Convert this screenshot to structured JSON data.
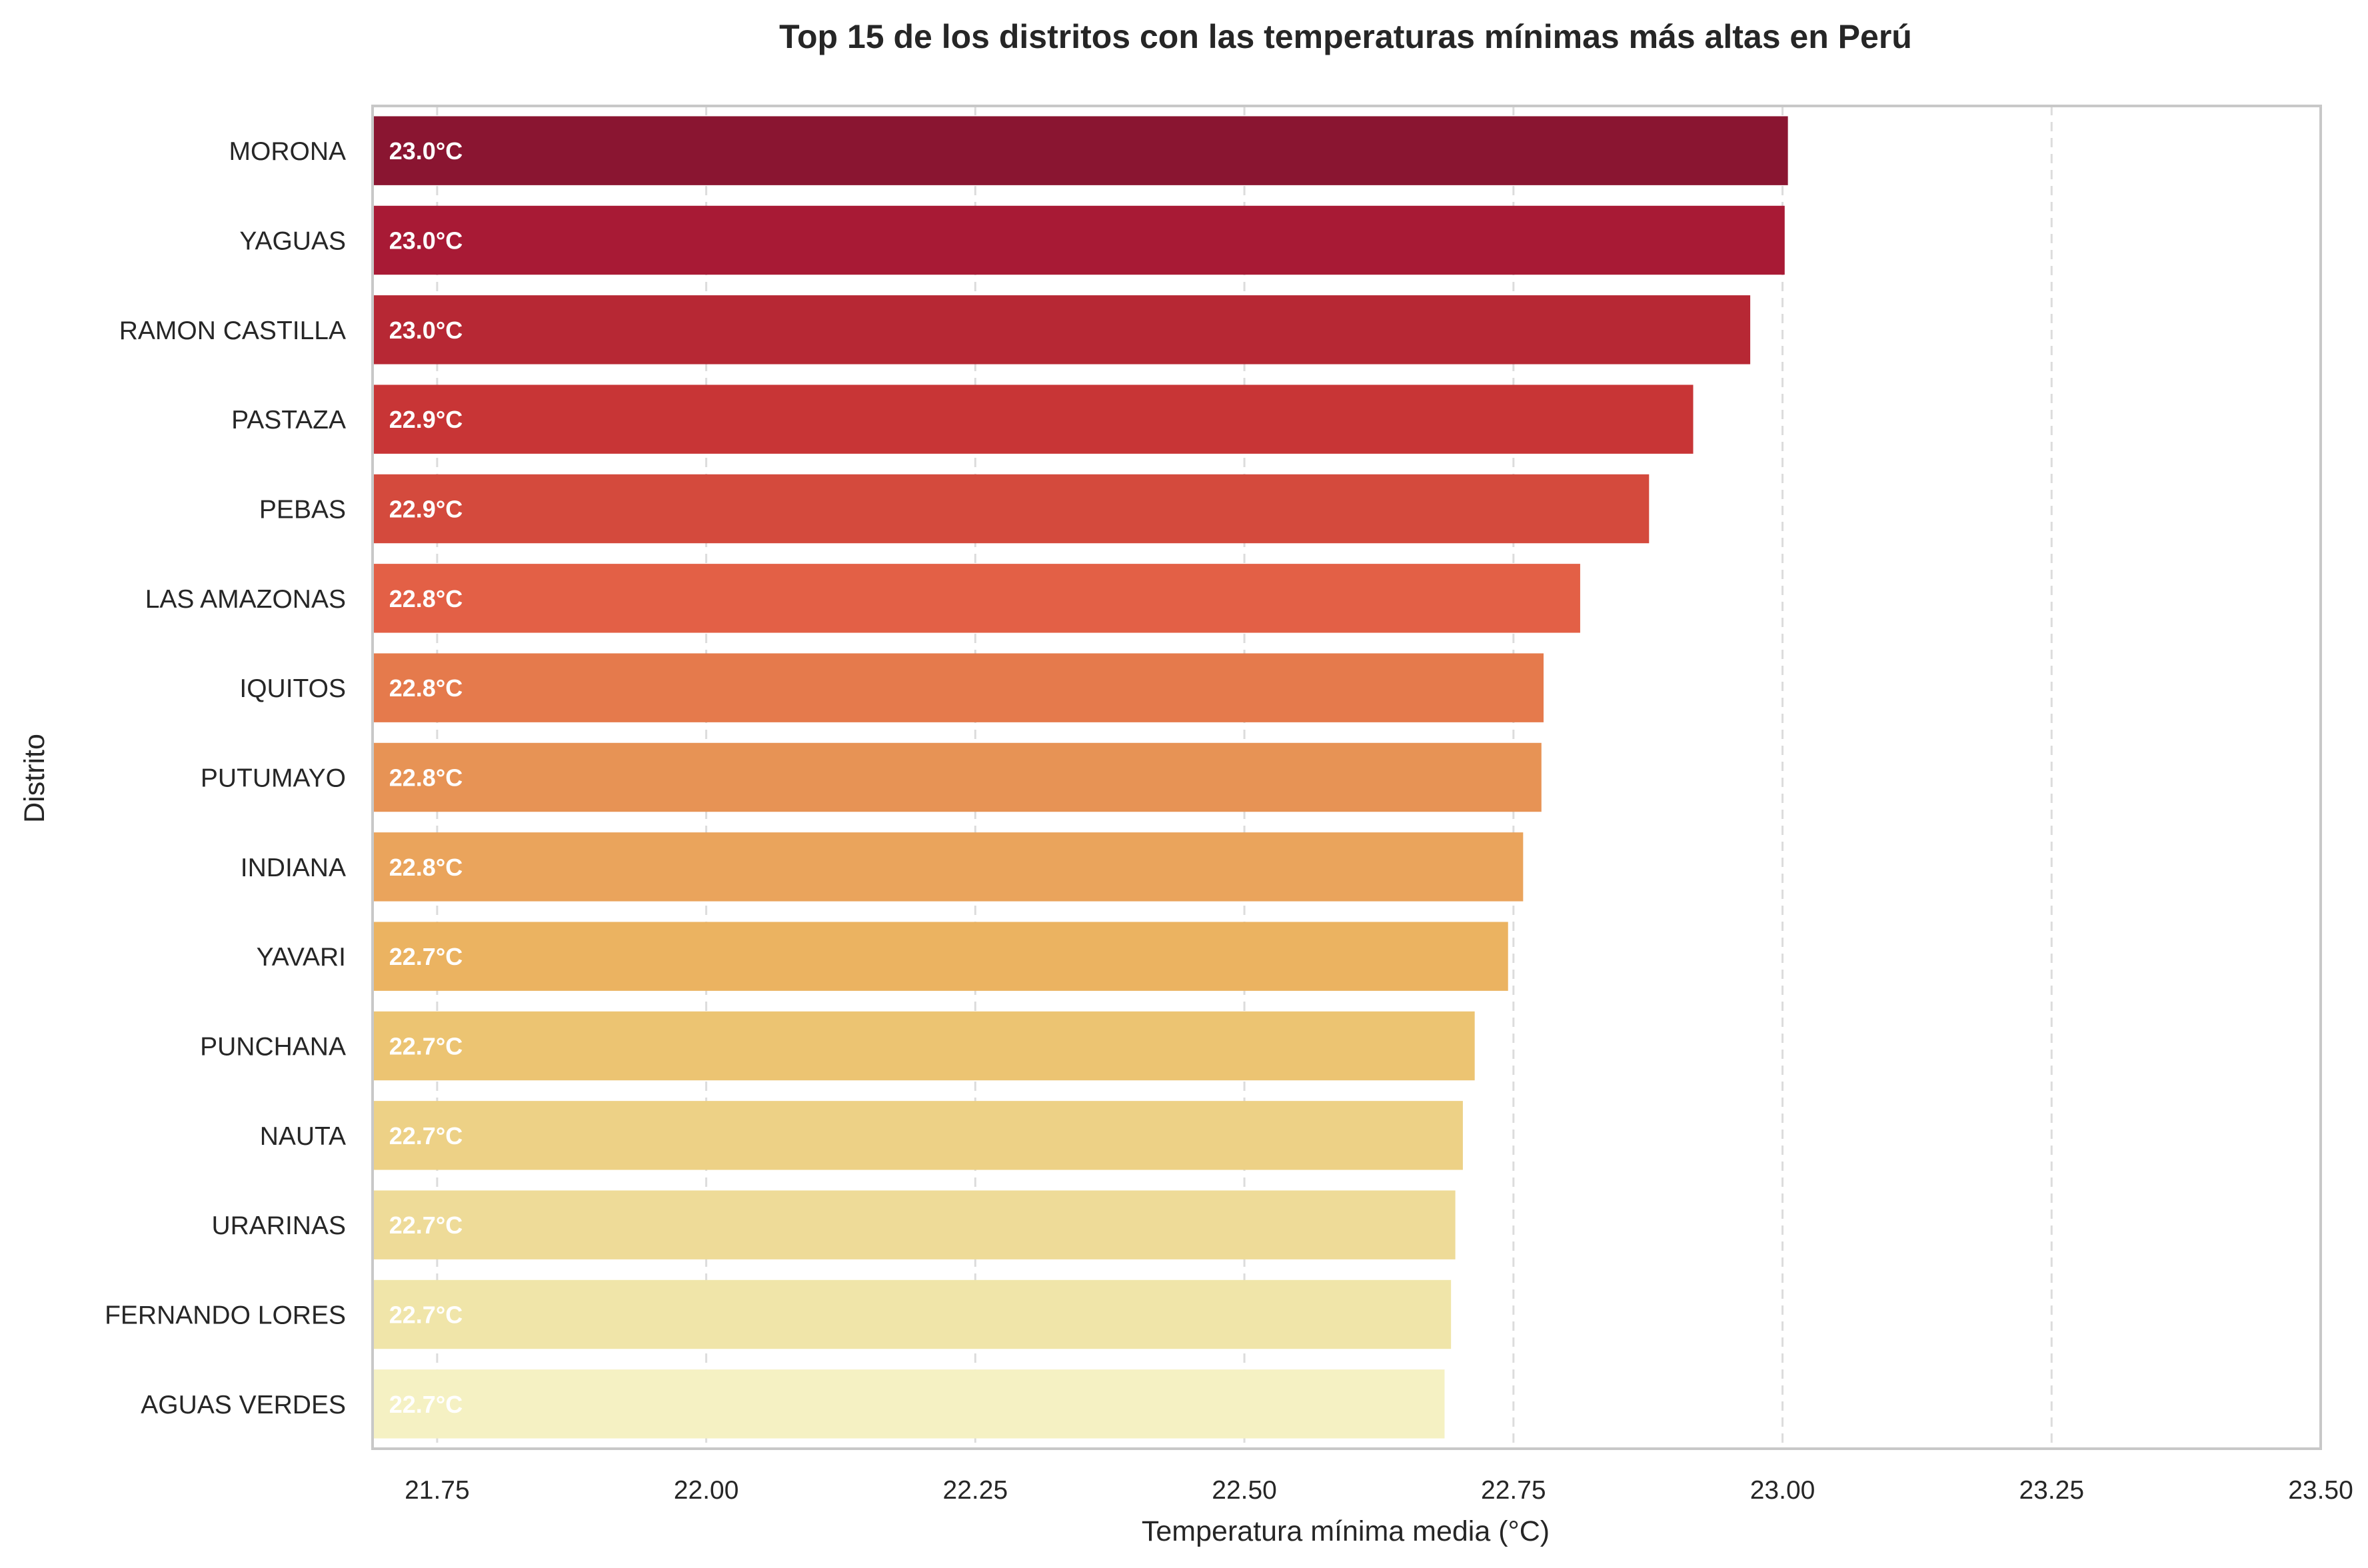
{
  "chart_data": {
    "type": "bar",
    "orientation": "horizontal",
    "title": "Top 15 de los distritos con las temperaturas mínimas más altas en Perú",
    "xlabel": "Temperatura mínima media (°C)",
    "ylabel": "Distrito",
    "xlim": [
      21.69,
      23.5
    ],
    "xticks": [
      "21.75",
      "22.00",
      "22.25",
      "22.50",
      "22.75",
      "23.00",
      "23.25",
      "23.50"
    ],
    "xtick_values": [
      21.75,
      22.0,
      22.25,
      22.5,
      22.75,
      23.0,
      23.25,
      23.5
    ],
    "grid": "x, dashed",
    "categories": [
      "MORONA",
      "YAGUAS",
      "RAMON CASTILLA",
      "PASTAZA",
      "PEBAS",
      "LAS AMAZONAS",
      "IQUITOS",
      "PUTUMAYO",
      "INDIANA",
      "YAVARI",
      "PUNCHANA",
      "NAUTA",
      "URARINAS",
      "FERNANDO LORES",
      "AGUAS VERDES"
    ],
    "values": [
      23.005,
      23.002,
      22.97,
      22.917,
      22.876,
      22.812,
      22.778,
      22.776,
      22.759,
      22.745,
      22.714,
      22.703,
      22.696,
      22.692,
      22.686
    ],
    "data_labels": [
      "23.0°C",
      "23.0°C",
      "23.0°C",
      "22.9°C",
      "22.9°C",
      "22.8°C",
      "22.8°C",
      "22.8°C",
      "22.8°C",
      "22.7°C",
      "22.7°C",
      "22.7°C",
      "22.7°C",
      "22.7°C",
      "22.7°C"
    ],
    "colors": [
      "#8a1531",
      "#a81a35",
      "#b72834",
      "#c83536",
      "#d44a3d",
      "#e36046",
      "#e57a4c",
      "#e79355",
      "#eaa45c",
      "#ebb361",
      "#ecc472",
      "#edd186",
      "#eedb98",
      "#f0e5a9",
      "#f5f1c3"
    ]
  }
}
